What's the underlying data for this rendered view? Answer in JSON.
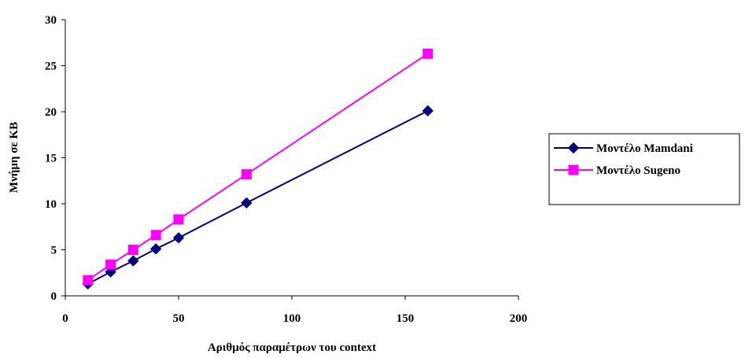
{
  "chart_data": {
    "type": "line",
    "title": "",
    "xlabel": "Αριθμός παραμέτρων του context",
    "ylabel": "Μνήμη σε KB",
    "xlim": [
      0,
      200
    ],
    "ylim": [
      0,
      30
    ],
    "xticks": [
      0,
      50,
      100,
      150,
      200
    ],
    "yticks": [
      0,
      5,
      10,
      15,
      20,
      25,
      30
    ],
    "grid": false,
    "legend_position": "right",
    "series": [
      {
        "name": "Μοντέλο Mamdani",
        "color": "#000080",
        "marker": "diamond",
        "x": [
          10,
          20,
          30,
          40,
          50,
          80,
          160
        ],
        "y": [
          1.3,
          2.6,
          3.8,
          5.1,
          6.3,
          10.1,
          20.1
        ]
      },
      {
        "name": "Μοντέλο Sugeno",
        "color": "#FF00FF",
        "marker": "square",
        "x": [
          10,
          20,
          30,
          40,
          50,
          80,
          160
        ],
        "y": [
          1.7,
          3.4,
          5.0,
          6.6,
          8.3,
          13.2,
          26.3
        ]
      }
    ]
  }
}
